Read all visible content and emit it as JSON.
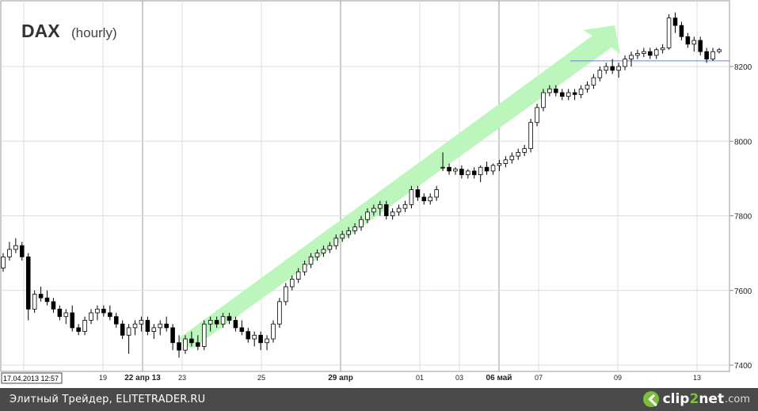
{
  "chart_data": {
    "type": "candlestick",
    "title": "DAX",
    "subtitle": "(hourly)",
    "y_ticks": [
      7400,
      7600,
      7800,
      8000,
      8200
    ],
    "ylim": [
      7388,
      8368
    ],
    "x_labels": [
      "17.04.2013 12:57",
      "19",
      "22 апр 13",
      "23",
      "25",
      "29 апр",
      "01",
      "03",
      "06 май",
      "07",
      "09",
      "13"
    ],
    "grid": true,
    "horizontal_level": 8215,
    "trend_arrow": {
      "from": [
        {
          "bar": 0
        }
      ],
      "note": "green upward arrow"
    },
    "candles": [
      [
        7660,
        7700,
        7650,
        7690
      ],
      [
        7690,
        7730,
        7680,
        7710
      ],
      [
        7710,
        7740,
        7700,
        7720
      ],
      [
        7720,
        7730,
        7680,
        7690
      ],
      [
        7690,
        7700,
        7520,
        7550
      ],
      [
        7550,
        7600,
        7540,
        7590
      ],
      [
        7590,
        7610,
        7570,
        7580
      ],
      [
        7580,
        7600,
        7560,
        7570
      ],
      [
        7570,
        7580,
        7540,
        7550
      ],
      [
        7550,
        7560,
        7520,
        7530
      ],
      [
        7530,
        7550,
        7510,
        7540
      ],
      [
        7540,
        7560,
        7490,
        7500
      ],
      [
        7500,
        7510,
        7480,
        7490
      ],
      [
        7490,
        7530,
        7480,
        7520
      ],
      [
        7520,
        7550,
        7510,
        7540
      ],
      [
        7540,
        7560,
        7520,
        7550
      ],
      [
        7550,
        7560,
        7530,
        7540
      ],
      [
        7540,
        7560,
        7520,
        7530
      ],
      [
        7530,
        7540,
        7500,
        7510
      ],
      [
        7510,
        7520,
        7470,
        7480
      ],
      [
        7480,
        7510,
        7430,
        7500
      ],
      [
        7500,
        7520,
        7480,
        7510
      ],
      [
        7510,
        7530,
        7490,
        7520
      ],
      [
        7520,
        7530,
        7480,
        7490
      ],
      [
        7490,
        7510,
        7470,
        7500
      ],
      [
        7500,
        7520,
        7480,
        7510
      ],
      [
        7510,
        7530,
        7490,
        7500
      ],
      [
        7500,
        7510,
        7440,
        7460
      ],
      [
        7460,
        7480,
        7420,
        7440
      ],
      [
        7440,
        7480,
        7430,
        7470
      ],
      [
        7470,
        7490,
        7450,
        7460
      ],
      [
        7460,
        7480,
        7440,
        7450
      ],
      [
        7450,
        7520,
        7440,
        7510
      ],
      [
        7510,
        7530,
        7490,
        7520
      ],
      [
        7520,
        7530,
        7500,
        7510
      ],
      [
        7510,
        7540,
        7500,
        7530
      ],
      [
        7530,
        7540,
        7510,
        7520
      ],
      [
        7520,
        7530,
        7490,
        7500
      ],
      [
        7500,
        7520,
        7480,
        7490
      ],
      [
        7490,
        7500,
        7460,
        7470
      ],
      [
        7470,
        7490,
        7450,
        7480
      ],
      [
        7480,
        7490,
        7440,
        7460
      ],
      [
        7460,
        7480,
        7440,
        7470
      ],
      [
        7470,
        7520,
        7460,
        7510
      ],
      [
        7510,
        7580,
        7500,
        7570
      ],
      [
        7570,
        7620,
        7560,
        7610
      ],
      [
        7610,
        7640,
        7600,
        7630
      ],
      [
        7630,
        7660,
        7620,
        7650
      ],
      [
        7650,
        7680,
        7640,
        7670
      ],
      [
        7670,
        7700,
        7660,
        7690
      ],
      [
        7690,
        7710,
        7680,
        7700
      ],
      [
        7700,
        7720,
        7690,
        7710
      ],
      [
        7710,
        7730,
        7700,
        7720
      ],
      [
        7720,
        7750,
        7710,
        7740
      ],
      [
        7740,
        7760,
        7730,
        7750
      ],
      [
        7750,
        7770,
        7740,
        7760
      ],
      [
        7760,
        7780,
        7750,
        7770
      ],
      [
        7770,
        7800,
        7760,
        7790
      ],
      [
        7790,
        7820,
        7780,
        7810
      ],
      [
        7810,
        7830,
        7800,
        7820
      ],
      [
        7820,
        7840,
        7800,
        7830
      ],
      [
        7830,
        7840,
        7790,
        7800
      ],
      [
        7800,
        7820,
        7790,
        7810
      ],
      [
        7810,
        7830,
        7800,
        7820
      ],
      [
        7820,
        7840,
        7810,
        7830
      ],
      [
        7830,
        7880,
        7820,
        7870
      ],
      [
        7870,
        7880,
        7840,
        7850
      ],
      [
        7850,
        7860,
        7830,
        7840
      ],
      [
        7840,
        7860,
        7830,
        7850
      ],
      [
        7850,
        7880,
        7840,
        7870
      ],
      [
        7930,
        7970,
        7920,
        7930
      ],
      [
        7930,
        7940,
        7910,
        7920
      ],
      [
        7920,
        7930,
        7910,
        7925
      ],
      [
        7925,
        7935,
        7900,
        7910
      ],
      [
        7910,
        7925,
        7900,
        7920
      ],
      [
        7920,
        7930,
        7900,
        7910
      ],
      [
        7910,
        7935,
        7890,
        7930
      ],
      [
        7930,
        7945,
        7910,
        7920
      ],
      [
        7920,
        7940,
        7910,
        7935
      ],
      [
        7935,
        7950,
        7920,
        7940
      ],
      [
        7940,
        7960,
        7930,
        7950
      ],
      [
        7950,
        7970,
        7940,
        7960
      ],
      [
        7960,
        7980,
        7950,
        7970
      ],
      [
        7970,
        7990,
        7960,
        7980
      ],
      [
        7980,
        8060,
        7970,
        8050
      ],
      [
        8050,
        8100,
        8040,
        8090
      ],
      [
        8090,
        8140,
        8080,
        8130
      ],
      [
        8130,
        8150,
        8120,
        8140
      ],
      [
        8140,
        8150,
        8120,
        8130
      ],
      [
        8130,
        8140,
        8110,
        8120
      ],
      [
        8120,
        8140,
        8110,
        8130
      ],
      [
        8130,
        8140,
        8110,
        8125
      ],
      [
        8125,
        8150,
        8115,
        8140
      ],
      [
        8140,
        8160,
        8130,
        8150
      ],
      [
        8150,
        8180,
        8140,
        8170
      ],
      [
        8170,
        8200,
        8160,
        8190
      ],
      [
        8190,
        8210,
        8180,
        8200
      ],
      [
        8200,
        8220,
        8180,
        8190
      ],
      [
        8190,
        8210,
        8170,
        8200
      ],
      [
        8200,
        8230,
        8190,
        8220
      ],
      [
        8220,
        8240,
        8200,
        8230
      ],
      [
        8230,
        8245,
        8220,
        8235
      ],
      [
        8235,
        8250,
        8225,
        8240
      ],
      [
        8240,
        8250,
        8220,
        8230
      ],
      [
        8230,
        8250,
        8220,
        8245
      ],
      [
        8245,
        8260,
        8235,
        8250
      ],
      [
        8250,
        8340,
        8245,
        8330
      ],
      [
        8330,
        8345,
        8290,
        8310
      ],
      [
        8310,
        8320,
        8270,
        8280
      ],
      [
        8280,
        8290,
        8250,
        8260
      ],
      [
        8260,
        8280,
        8240,
        8270
      ],
      [
        8270,
        8280,
        8230,
        8240
      ],
      [
        8240,
        8250,
        8210,
        8220
      ],
      [
        8220,
        8250,
        8215,
        8240
      ],
      [
        8240,
        8250,
        8235,
        8245
      ]
    ]
  },
  "footer": {
    "source_text": "Элитный Трейдер, ELITETRADER.RU",
    "brand_name_a": "clip",
    "brand_name_accent": "2",
    "brand_name_b": "net",
    "brand_domain": ".com"
  },
  "colors": {
    "accent": "#7bbf3a",
    "arrow": "#b8f5b8",
    "level": "#6f7fd6"
  }
}
